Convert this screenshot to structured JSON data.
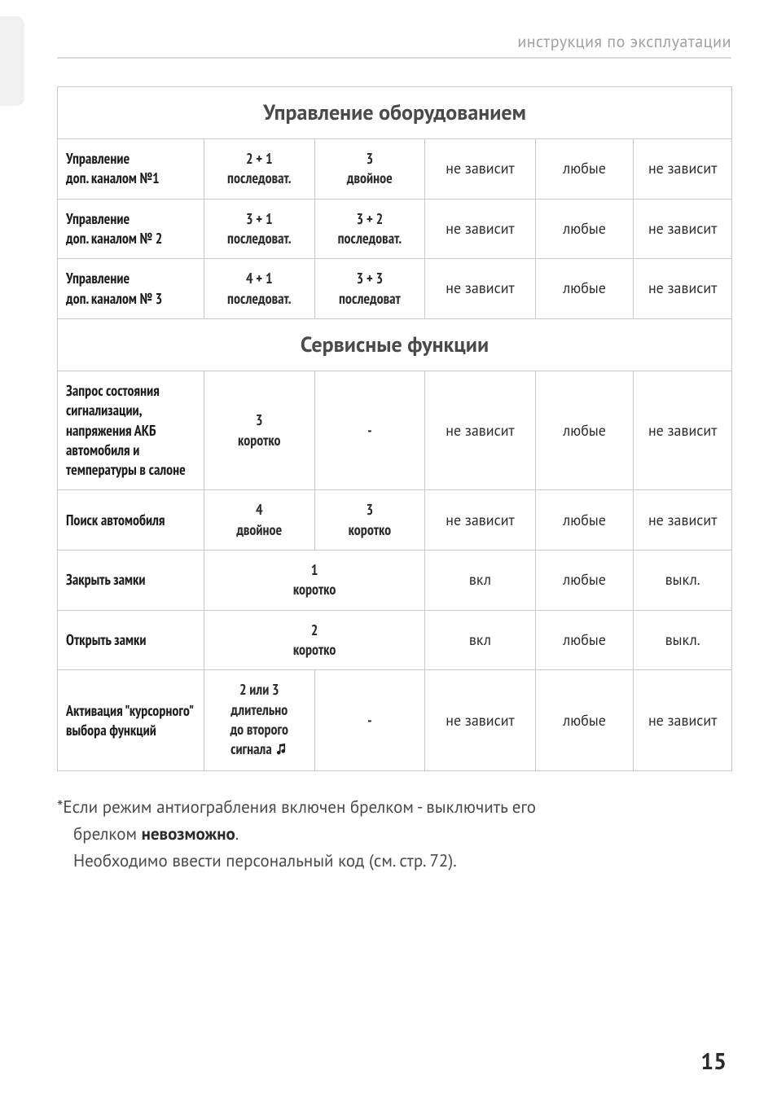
{
  "header": "инструкция по эксплуатации",
  "page_number": "15",
  "sections": {
    "equip": "Управление оборудованием",
    "service": "Сервисные функции"
  },
  "table": {
    "equip_rows": [
      {
        "desc": "Управление\nдоп. каналом №1",
        "c1": "2 + 1\nпоследоват.",
        "c2": "3\nдвойное",
        "c3": "не зависит",
        "c4": "любые",
        "c5": "не зависит"
      },
      {
        "desc": "Управление\nдоп. каналом № 2",
        "c1": "3 + 1\nпоследоват.",
        "c2": "3 + 2\nпоследоват.",
        "c3": "не зависит",
        "c4": "любые",
        "c5": "не зависит"
      },
      {
        "desc": "Управление\nдоп. каналом № 3",
        "c1": "4 + 1\nпоследоват.",
        "c2": "3 + 3\nпоследоват",
        "c3": "не зависит",
        "c4": "любые",
        "c5": "не зависит"
      }
    ],
    "service_rows": [
      {
        "desc": "Запрос состояния сигнализации, напряжения АКБ автомобиля и температуры в салоне",
        "c1": "3\nкоротко",
        "c2": "-",
        "c3": "не зависит",
        "c4": "любые",
        "c5": "не зависит",
        "span": false
      },
      {
        "desc": "Поиск автомобиля",
        "c1": "4\nдвойное",
        "c2": "3\nкоротко",
        "c3": "не зависит",
        "c4": "любые",
        "c5": "не зависит",
        "span": false
      },
      {
        "desc": "Закрыть замки",
        "c12": "1\nкоротко",
        "c3": "вкл",
        "c4": "любые",
        "c5": "выкл.",
        "span": true
      },
      {
        "desc": "Открыть замки",
        "c12": "2\nкоротко",
        "c3": "вкл",
        "c4": "любые",
        "c5": "выкл.",
        "span": true
      },
      {
        "desc": "Активация \"курсорного\" выбора функций",
        "c1_lines": [
          "2 или 3",
          "длительно",
          "до второго",
          "сигнала "
        ],
        "c1_has_icon": true,
        "c2": "-",
        "c3": "не зависит",
        "c4": "любые",
        "c5": "не зависит",
        "span": false
      }
    ]
  },
  "footnote": {
    "l1_pre": "*Если режим антиограбления включен брелком - выключить его",
    "l2_pre": "брелком ",
    "l2_bold": "невозможно",
    "l2_post": ".",
    "l3": "Необходимо ввести персональный код (см. стр. 72)."
  }
}
